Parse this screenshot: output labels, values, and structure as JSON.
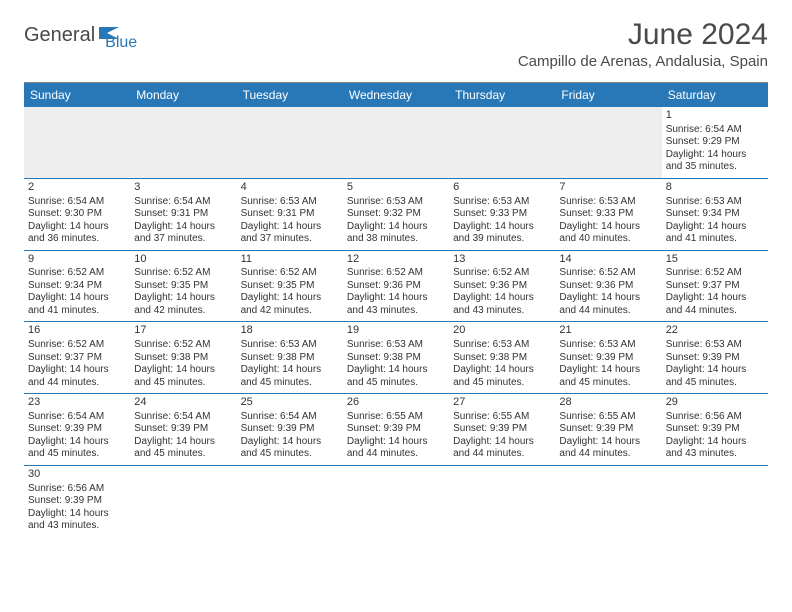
{
  "logo": {
    "text_general": "General",
    "text_blue": "Blue",
    "shape_color": "#2878b8",
    "general_color": "#4a4a4a"
  },
  "title": {
    "month": "June 2024",
    "location": "Campillo de Arenas, Andalusia, Spain"
  },
  "colors": {
    "header_bg": "#2878b8",
    "header_text": "#ffffff",
    "row_border": "#2878b8",
    "empty_bg": "#eeeeee",
    "text": "#333333"
  },
  "day_headers": [
    "Sunday",
    "Monday",
    "Tuesday",
    "Wednesday",
    "Thursday",
    "Friday",
    "Saturday"
  ],
  "weeks": [
    [
      {
        "empty": true
      },
      {
        "empty": true
      },
      {
        "empty": true
      },
      {
        "empty": true
      },
      {
        "empty": true
      },
      {
        "empty": true
      },
      {
        "day": "1",
        "sunrise": "Sunrise: 6:54 AM",
        "sunset": "Sunset: 9:29 PM",
        "daylight": "Daylight: 14 hours and 35 minutes."
      }
    ],
    [
      {
        "day": "2",
        "sunrise": "Sunrise: 6:54 AM",
        "sunset": "Sunset: 9:30 PM",
        "daylight": "Daylight: 14 hours and 36 minutes."
      },
      {
        "day": "3",
        "sunrise": "Sunrise: 6:54 AM",
        "sunset": "Sunset: 9:31 PM",
        "daylight": "Daylight: 14 hours and 37 minutes."
      },
      {
        "day": "4",
        "sunrise": "Sunrise: 6:53 AM",
        "sunset": "Sunset: 9:31 PM",
        "daylight": "Daylight: 14 hours and 37 minutes."
      },
      {
        "day": "5",
        "sunrise": "Sunrise: 6:53 AM",
        "sunset": "Sunset: 9:32 PM",
        "daylight": "Daylight: 14 hours and 38 minutes."
      },
      {
        "day": "6",
        "sunrise": "Sunrise: 6:53 AM",
        "sunset": "Sunset: 9:33 PM",
        "daylight": "Daylight: 14 hours and 39 minutes."
      },
      {
        "day": "7",
        "sunrise": "Sunrise: 6:53 AM",
        "sunset": "Sunset: 9:33 PM",
        "daylight": "Daylight: 14 hours and 40 minutes."
      },
      {
        "day": "8",
        "sunrise": "Sunrise: 6:53 AM",
        "sunset": "Sunset: 9:34 PM",
        "daylight": "Daylight: 14 hours and 41 minutes."
      }
    ],
    [
      {
        "day": "9",
        "sunrise": "Sunrise: 6:52 AM",
        "sunset": "Sunset: 9:34 PM",
        "daylight": "Daylight: 14 hours and 41 minutes."
      },
      {
        "day": "10",
        "sunrise": "Sunrise: 6:52 AM",
        "sunset": "Sunset: 9:35 PM",
        "daylight": "Daylight: 14 hours and 42 minutes."
      },
      {
        "day": "11",
        "sunrise": "Sunrise: 6:52 AM",
        "sunset": "Sunset: 9:35 PM",
        "daylight": "Daylight: 14 hours and 42 minutes."
      },
      {
        "day": "12",
        "sunrise": "Sunrise: 6:52 AM",
        "sunset": "Sunset: 9:36 PM",
        "daylight": "Daylight: 14 hours and 43 minutes."
      },
      {
        "day": "13",
        "sunrise": "Sunrise: 6:52 AM",
        "sunset": "Sunset: 9:36 PM",
        "daylight": "Daylight: 14 hours and 43 minutes."
      },
      {
        "day": "14",
        "sunrise": "Sunrise: 6:52 AM",
        "sunset": "Sunset: 9:36 PM",
        "daylight": "Daylight: 14 hours and 44 minutes."
      },
      {
        "day": "15",
        "sunrise": "Sunrise: 6:52 AM",
        "sunset": "Sunset: 9:37 PM",
        "daylight": "Daylight: 14 hours and 44 minutes."
      }
    ],
    [
      {
        "day": "16",
        "sunrise": "Sunrise: 6:52 AM",
        "sunset": "Sunset: 9:37 PM",
        "daylight": "Daylight: 14 hours and 44 minutes."
      },
      {
        "day": "17",
        "sunrise": "Sunrise: 6:52 AM",
        "sunset": "Sunset: 9:38 PM",
        "daylight": "Daylight: 14 hours and 45 minutes."
      },
      {
        "day": "18",
        "sunrise": "Sunrise: 6:53 AM",
        "sunset": "Sunset: 9:38 PM",
        "daylight": "Daylight: 14 hours and 45 minutes."
      },
      {
        "day": "19",
        "sunrise": "Sunrise: 6:53 AM",
        "sunset": "Sunset: 9:38 PM",
        "daylight": "Daylight: 14 hours and 45 minutes."
      },
      {
        "day": "20",
        "sunrise": "Sunrise: 6:53 AM",
        "sunset": "Sunset: 9:38 PM",
        "daylight": "Daylight: 14 hours and 45 minutes."
      },
      {
        "day": "21",
        "sunrise": "Sunrise: 6:53 AM",
        "sunset": "Sunset: 9:39 PM",
        "daylight": "Daylight: 14 hours and 45 minutes."
      },
      {
        "day": "22",
        "sunrise": "Sunrise: 6:53 AM",
        "sunset": "Sunset: 9:39 PM",
        "daylight": "Daylight: 14 hours and 45 minutes."
      }
    ],
    [
      {
        "day": "23",
        "sunrise": "Sunrise: 6:54 AM",
        "sunset": "Sunset: 9:39 PM",
        "daylight": "Daylight: 14 hours and 45 minutes."
      },
      {
        "day": "24",
        "sunrise": "Sunrise: 6:54 AM",
        "sunset": "Sunset: 9:39 PM",
        "daylight": "Daylight: 14 hours and 45 minutes."
      },
      {
        "day": "25",
        "sunrise": "Sunrise: 6:54 AM",
        "sunset": "Sunset: 9:39 PM",
        "daylight": "Daylight: 14 hours and 45 minutes."
      },
      {
        "day": "26",
        "sunrise": "Sunrise: 6:55 AM",
        "sunset": "Sunset: 9:39 PM",
        "daylight": "Daylight: 14 hours and 44 minutes."
      },
      {
        "day": "27",
        "sunrise": "Sunrise: 6:55 AM",
        "sunset": "Sunset: 9:39 PM",
        "daylight": "Daylight: 14 hours and 44 minutes."
      },
      {
        "day": "28",
        "sunrise": "Sunrise: 6:55 AM",
        "sunset": "Sunset: 9:39 PM",
        "daylight": "Daylight: 14 hours and 44 minutes."
      },
      {
        "day": "29",
        "sunrise": "Sunrise: 6:56 AM",
        "sunset": "Sunset: 9:39 PM",
        "daylight": "Daylight: 14 hours and 43 minutes."
      }
    ],
    [
      {
        "day": "30",
        "sunrise": "Sunrise: 6:56 AM",
        "sunset": "Sunset: 9:39 PM",
        "daylight": "Daylight: 14 hours and 43 minutes."
      },
      {
        "empty": true
      },
      {
        "empty": true
      },
      {
        "empty": true
      },
      {
        "empty": true
      },
      {
        "empty": true
      },
      {
        "empty": true
      }
    ]
  ]
}
